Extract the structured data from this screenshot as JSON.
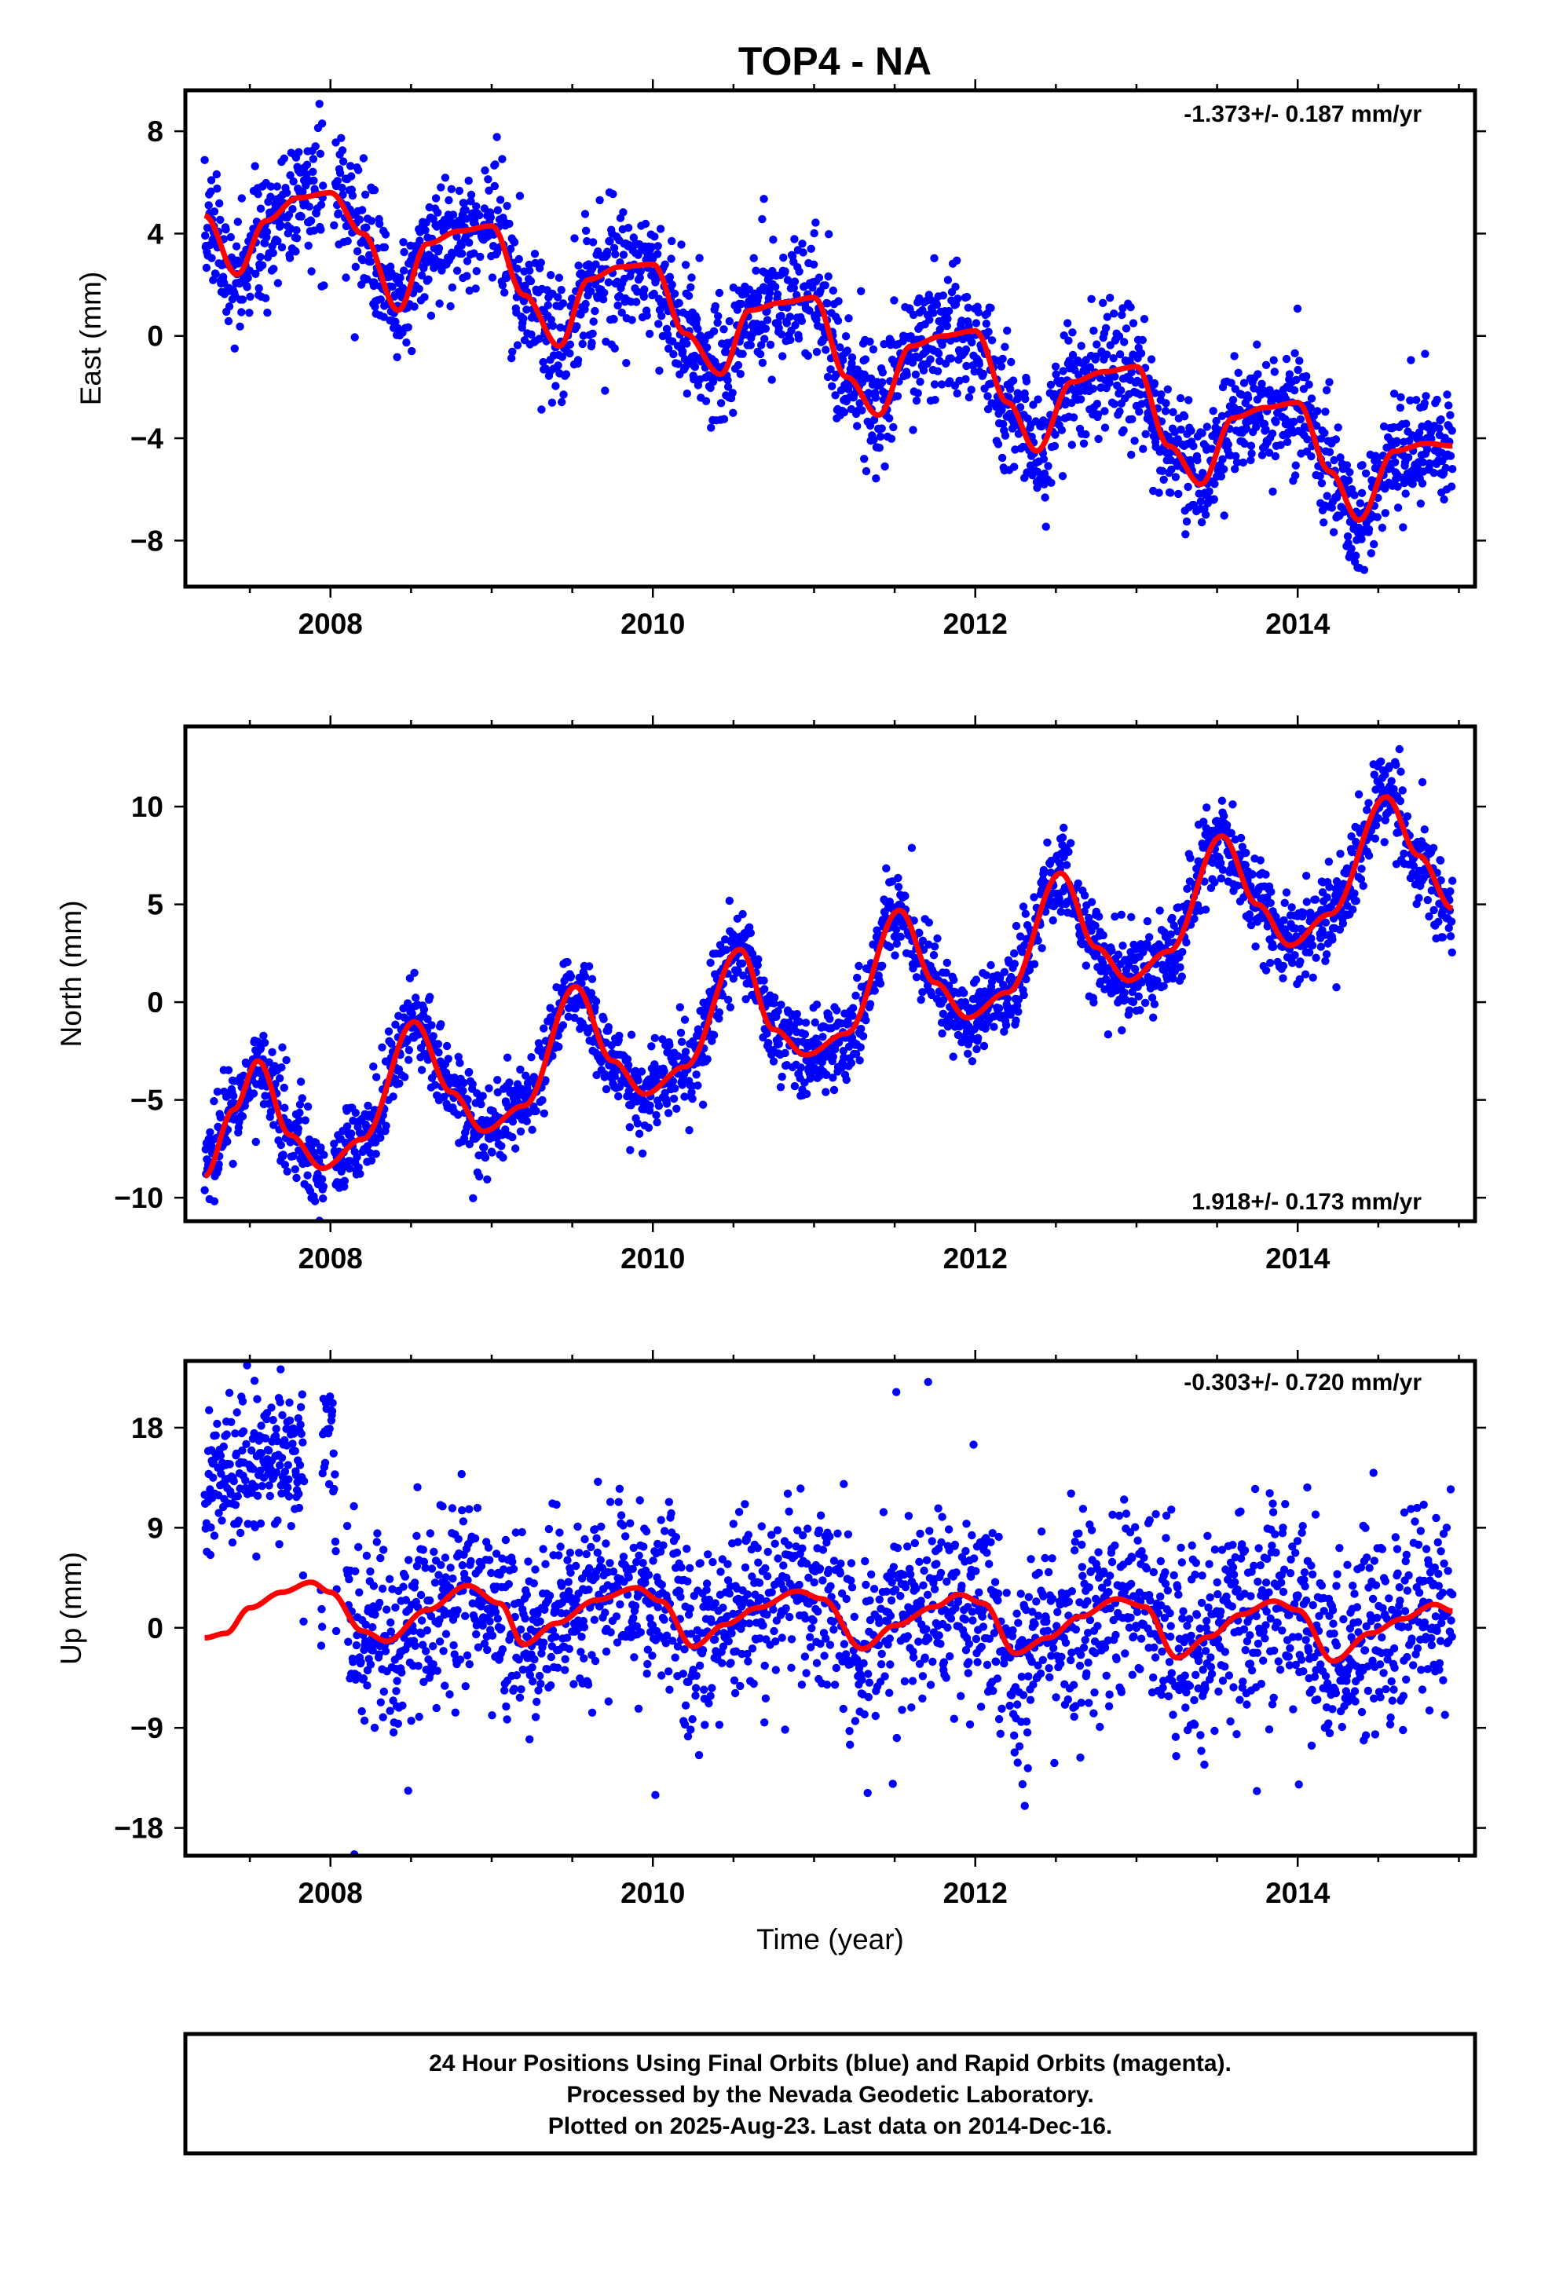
{
  "title": "TOP4 - NA",
  "xlabel": "Time (year)",
  "caption": [
    "24 Hour Positions Using Final Orbits (blue) and Rapid Orbits (magenta).",
    "Processed by the Nevada Geodetic Laboratory.",
    "Plotted on 2025-Aug-23. Last data on 2014-Dec-16."
  ],
  "colors": {
    "points": "#0000ff",
    "model": "#ff0000",
    "axes": "#000000",
    "background": "#ffffff"
  },
  "chart_data": [
    {
      "type": "scatter",
      "component": "East",
      "ylabel": "East (mm)",
      "rate_label": "-1.373+/- 0.187 mm/yr",
      "rate_position": "top-right",
      "xlim": [
        2007.1,
        2015.1
      ],
      "ylim": [
        -9.8,
        9.6
      ],
      "xticks": [
        2008,
        2010,
        2012,
        2014
      ],
      "xtick_labels": [
        "2008",
        "2010",
        "2012",
        "2014"
      ],
      "yticks": [
        -8,
        -4,
        0,
        4,
        8
      ],
      "ytick_labels": [
        "−8",
        "−4",
        "0",
        "4",
        "8"
      ],
      "data_range": [
        2007.22,
        2014.96
      ],
      "trend": {
        "intercept_at_2007_2": 4.4,
        "rate_mm_per_yr": -1.373
      },
      "model_curve": {
        "x": [
          2007.22,
          2007.42,
          2007.6,
          2007.8,
          2008.0,
          2008.2,
          2008.42,
          2008.6,
          2008.8,
          2009.0,
          2009.2,
          2009.42,
          2009.6,
          2009.8,
          2010.0,
          2010.2,
          2010.42,
          2010.6,
          2010.8,
          2011.0,
          2011.2,
          2011.4,
          2011.6,
          2011.8,
          2012.0,
          2012.2,
          2012.38,
          2012.6,
          2012.8,
          2013.0,
          2013.2,
          2013.4,
          2013.6,
          2013.8,
          2014.0,
          2014.2,
          2014.38,
          2014.6,
          2014.8,
          2014.96
        ],
        "y": [
          4.7,
          2.4,
          4.5,
          5.4,
          5.6,
          4.0,
          1.0,
          3.6,
          4.1,
          4.3,
          1.6,
          -0.4,
          2.2,
          2.7,
          2.8,
          0.1,
          -1.5,
          1.0,
          1.3,
          1.5,
          -1.6,
          -3.1,
          -0.4,
          0.0,
          0.2,
          -2.6,
          -4.5,
          -1.8,
          -1.4,
          -1.2,
          -4.3,
          -5.8,
          -3.2,
          -2.8,
          -2.6,
          -5.3,
          -7.2,
          -4.5,
          -4.2,
          -4.3
        ]
      },
      "scatter_model": {
        "daily_points": "approx. 2500 daily positions (2007.22 to 2014.96)",
        "scatter_sd_mm": 1.2,
        "gaps": [
          [
            2007.96,
            2008.02
          ]
        ]
      }
    },
    {
      "type": "scatter",
      "component": "North",
      "ylabel": "North (mm)",
      "rate_label": "1.918+/- 0.173 mm/yr",
      "rate_position": "bottom-right",
      "xlim": [
        2007.1,
        2015.1
      ],
      "ylim": [
        -11.2,
        14.1
      ],
      "xticks": [
        2008,
        2010,
        2012,
        2014
      ],
      "xtick_labels": [
        "2008",
        "2010",
        "2012",
        "2014"
      ],
      "yticks": [
        -10,
        -5,
        0,
        5,
        10
      ],
      "ytick_labels": [
        "−10",
        "−5",
        "0",
        "5",
        "10"
      ],
      "data_range": [
        2007.22,
        2014.96
      ],
      "trend": {
        "intercept_at_2007_2": -7.0,
        "rate_mm_per_yr": 1.918
      },
      "model_curve": {
        "x": [
          2007.22,
          2007.4,
          2007.55,
          2007.75,
          2007.95,
          2008.2,
          2008.52,
          2008.75,
          2008.95,
          2009.2,
          2009.52,
          2009.75,
          2009.95,
          2010.2,
          2010.54,
          2010.75,
          2010.95,
          2011.2,
          2011.53,
          2011.75,
          2011.95,
          2012.2,
          2012.53,
          2012.75,
          2012.95,
          2013.2,
          2013.53,
          2013.75,
          2013.95,
          2014.2,
          2014.55,
          2014.75,
          2014.96
        ],
        "y": [
          -8.9,
          -5.5,
          -3.0,
          -6.8,
          -8.5,
          -7.0,
          -1.0,
          -4.6,
          -6.6,
          -5.3,
          0.8,
          -3.0,
          -4.7,
          -3.3,
          2.7,
          -1.4,
          -2.7,
          -1.6,
          4.7,
          1.0,
          -0.8,
          0.5,
          6.6,
          2.8,
          1.1,
          2.6,
          8.5,
          5.0,
          2.9,
          4.5,
          10.5,
          7.5,
          4.8
        ]
      },
      "scatter_model": {
        "daily_points": "approx. 2500 daily positions (2007.22 to 2014.96)",
        "scatter_sd_mm": 1.1,
        "gaps": [
          [
            2007.96,
            2008.02
          ]
        ]
      }
    },
    {
      "type": "scatter",
      "component": "Up",
      "ylabel": "Up (mm)",
      "rate_label": "-0.303+/- 0.720 mm/yr",
      "rate_position": "top-right",
      "xlim": [
        2007.1,
        2015.1
      ],
      "ylim": [
        -20.5,
        24.0
      ],
      "xticks": [
        2008,
        2010,
        2012,
        2014
      ],
      "xtick_labels": [
        "2008",
        "2010",
        "2012",
        "2014"
      ],
      "yticks": [
        -18,
        -9,
        0,
        9,
        18
      ],
      "ytick_labels": [
        "−18",
        "−9",
        "0",
        "9",
        "18"
      ],
      "data_range": [
        2007.22,
        2014.96
      ],
      "trend": {
        "intercept_at_2007_2": 0.0,
        "rate_mm_per_yr": -0.303
      },
      "model_curve": {
        "x": [
          2007.22,
          2007.35,
          2007.5,
          2007.7,
          2007.88,
          2008.0,
          2008.2,
          2008.35,
          2008.6,
          2008.85,
          2009.05,
          2009.2,
          2009.4,
          2009.65,
          2009.9,
          2010.05,
          2010.25,
          2010.45,
          2010.65,
          2010.9,
          2011.05,
          2011.3,
          2011.5,
          2011.75,
          2011.9,
          2012.05,
          2012.25,
          2012.45,
          2012.65,
          2012.88,
          2013.05,
          2013.25,
          2013.45,
          2013.65,
          2013.85,
          2014.0,
          2014.22,
          2014.45,
          2014.65,
          2014.85,
          2014.96
        ],
        "y": [
          -0.9,
          -0.5,
          1.8,
          3.2,
          4.1,
          3.2,
          -0.3,
          -1.2,
          1.6,
          3.8,
          2.2,
          -1.5,
          0.4,
          2.5,
          3.6,
          2.4,
          -1.7,
          0.3,
          1.8,
          3.3,
          2.6,
          -1.9,
          0.2,
          1.9,
          3.0,
          2.2,
          -2.3,
          -0.9,
          1.0,
          2.6,
          1.9,
          -2.7,
          -0.8,
          1.2,
          2.4,
          1.6,
          -3.0,
          -0.5,
          0.8,
          2.1,
          1.5
        ]
      },
      "scatter_model": {
        "daily_points": "approx. 2500 daily positions (2007.22 to 2014.96)",
        "scatter_sd_mm": 4.2,
        "offset_segment": {
          "x_range": [
            2007.22,
            2007.83
          ],
          "center_mm": 13.5,
          "sd_mm": 3.3
        },
        "offset_segment_2": {
          "x_range": [
            2007.95,
            2008.03
          ],
          "center_mm": 16.0,
          "sd_mm": 3.0
        },
        "gaps": [
          [
            2007.84,
            2007.94
          ],
          [
            2008.04,
            2008.1
          ]
        ]
      }
    }
  ]
}
